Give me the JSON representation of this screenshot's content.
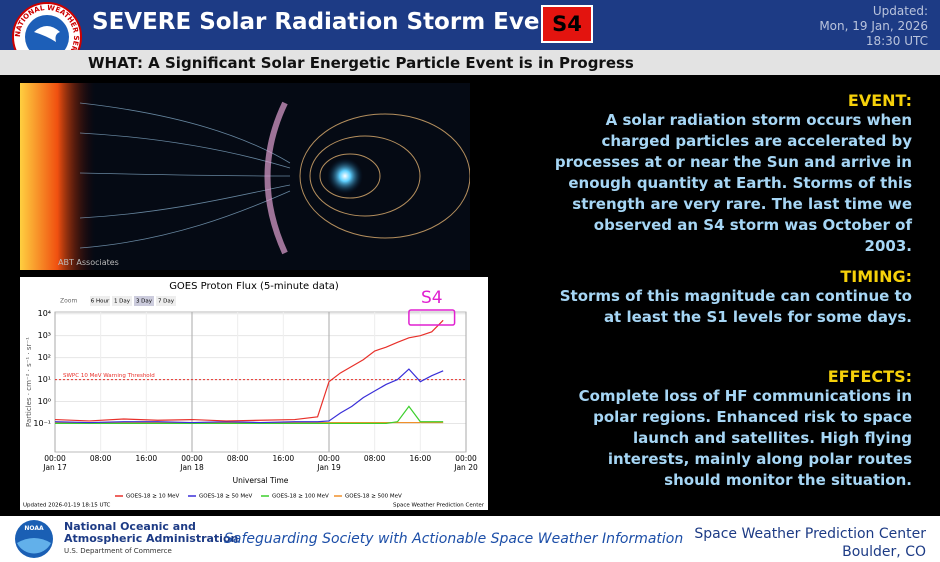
{
  "header": {
    "title": "SEVERE Solar Radiation Storm Event",
    "badge": "S4",
    "updated_label": "Updated:",
    "updated_date": "Mon, 19 Jan, 2026",
    "updated_time": "18:30 UTC",
    "logo_text": "NATIONAL WEATHER SERVICE"
  },
  "what": "WHAT: A Significant Solar Energetic Particle Event is in Progress",
  "image_credit": "ABT Associates",
  "sections": [
    {
      "heading": "EVENT:",
      "text": "A solar radiation storm occurs when charged particles are accelerated by processes at or near the Sun and arrive in enough quantity at Earth. Storms of this strength are very rare. The last time we observed an S4 storm was October of 2003."
    },
    {
      "heading": "TIMING:",
      "text": "Storms of this magnitude can continue to at least the S1 levels for some days."
    },
    {
      "heading": "EFFECTS:",
      "text": "Complete loss of HF communications in polar regions. Enhanced risk to space launch and satellites. High flying interests, mainly along polar routes should monitor the situation."
    }
  ],
  "footer": {
    "noaa": "NOAA",
    "org_line1": "National Oceanic and",
    "org_line2": "Atmospheric Administration",
    "dept": "U.S. Department of Commerce",
    "slogan": "Safeguarding Society with Actionable Space Weather Information",
    "center": "Space Weather Prediction Center",
    "location": "Boulder, CO"
  },
  "chart_data": {
    "type": "line",
    "title": "GOES Proton Flux (5-minute data)",
    "zoom_label": "Zoom",
    "zoom_options": [
      "6 Hour",
      "1 Day",
      "3 Day",
      "7 Day"
    ],
    "y_label": "Particles · cm⁻² · s⁻¹ · sr⁻¹",
    "x_label": "Universal Time",
    "log_y": true,
    "ylim": [
      0.005,
      12000
    ],
    "yticks": [
      {
        "value": 10000,
        "label": "10⁴"
      },
      {
        "value": 1000,
        "label": "10³"
      },
      {
        "value": 100,
        "label": "10²"
      },
      {
        "value": 10,
        "label": "10¹"
      },
      {
        "value": 1,
        "label": "10⁰"
      },
      {
        "value": 0.1,
        "label": "10⁻¹"
      }
    ],
    "xlim": [
      0,
      72
    ],
    "xticks": [
      {
        "value": 0,
        "label": "00:00"
      },
      {
        "value": 8,
        "label": "08:00"
      },
      {
        "value": 16,
        "label": "16:00"
      },
      {
        "value": 24,
        "label": "00:00"
      },
      {
        "value": 32,
        "label": "08:00"
      },
      {
        "value": 40,
        "label": "16:00"
      },
      {
        "value": 48,
        "label": "00:00"
      },
      {
        "value": 56,
        "label": "08:00"
      },
      {
        "value": 64,
        "label": "16:00"
      },
      {
        "value": 72,
        "label": "00:00"
      }
    ],
    "date_labels": [
      {
        "value": 0,
        "label": "Jan 17"
      },
      {
        "value": 24,
        "label": "Jan 18"
      },
      {
        "value": 48,
        "label": "Jan 19"
      },
      {
        "value": 72,
        "label": "Jan 20"
      }
    ],
    "x": [
      0,
      6,
      12,
      18,
      24,
      30,
      36,
      42,
      46,
      48,
      50,
      52,
      54,
      56,
      58,
      60,
      62,
      64,
      66,
      68
    ],
    "series": [
      {
        "name": "GOES-18 ≥ 10 MeV",
        "color": "#e8302a",
        "values": [
          0.15,
          0.13,
          0.16,
          0.14,
          0.15,
          0.13,
          0.14,
          0.15,
          0.2,
          8,
          20,
          40,
          80,
          200,
          300,
          500,
          800,
          1000,
          1500,
          5000
        ]
      },
      {
        "name": "GOES-18 ≥ 50 MeV",
        "color": "#3a2fd8",
        "values": [
          0.12,
          0.11,
          0.12,
          0.12,
          0.11,
          0.12,
          0.11,
          0.12,
          0.12,
          0.13,
          0.3,
          0.6,
          1.5,
          3,
          6,
          10,
          30,
          8,
          15,
          25
        ]
      },
      {
        "name": "GOES-18 ≥ 100 MeV",
        "color": "#3ccf2c",
        "values": [
          0.1,
          0.1,
          0.1,
          0.1,
          0.1,
          0.1,
          0.1,
          0.1,
          0.1,
          0.1,
          0.1,
          0.1,
          0.1,
          0.1,
          0.1,
          0.12,
          0.6,
          0.12,
          0.12,
          0.12
        ]
      },
      {
        "name": "GOES-18 ≥ 500 MeV",
        "color": "#f0902a",
        "values": [
          0.11,
          0.11,
          0.11,
          0.11,
          0.11,
          0.11,
          0.11,
          0.11,
          0.11,
          0.11,
          0.11,
          0.11,
          0.11,
          0.11,
          0.11,
          0.11,
          0.11,
          0.11,
          0.11,
          0.11
        ]
      }
    ],
    "threshold": {
      "value": 10,
      "label": "SWPC 10 MeV Warning Threshold",
      "color": "#e8302a"
    },
    "annotation": {
      "label": "S4",
      "color": "#e020d0",
      "x_range": [
        62,
        70
      ]
    },
    "updated": "Updated 2026-01-19 18:15 UTC",
    "credit": "Space Weather Prediction Center"
  }
}
